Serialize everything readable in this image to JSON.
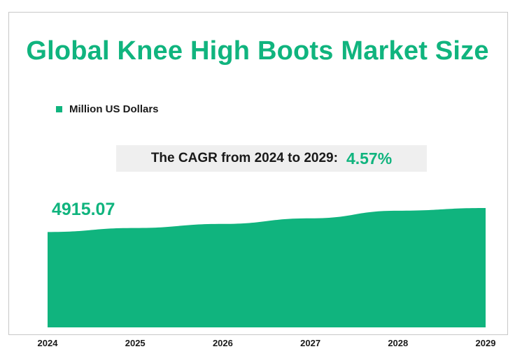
{
  "title": "Global Knee High Boots Market Size",
  "legend": {
    "label": "Million US Dollars",
    "color": "#10b47e"
  },
  "cagr": {
    "label": "The CAGR from 2024 to 2029:",
    "value": "4.57%"
  },
  "first_value_label": "4915.07",
  "chart_data": {
    "type": "area",
    "title": "Global Knee High Boots Market Size",
    "x": [
      "2024",
      "2025",
      "2026",
      "2027",
      "2028",
      "2029"
    ],
    "series": [
      {
        "name": "Million US Dollars",
        "values": [
          4915.07,
          5120,
          5330,
          5620,
          6010,
          6150
        ]
      }
    ],
    "xlabel": "",
    "ylabel": "",
    "ylim": [
      0,
      6150
    ],
    "grid": false,
    "legend_position": "top-left",
    "color": "#10b47e"
  }
}
